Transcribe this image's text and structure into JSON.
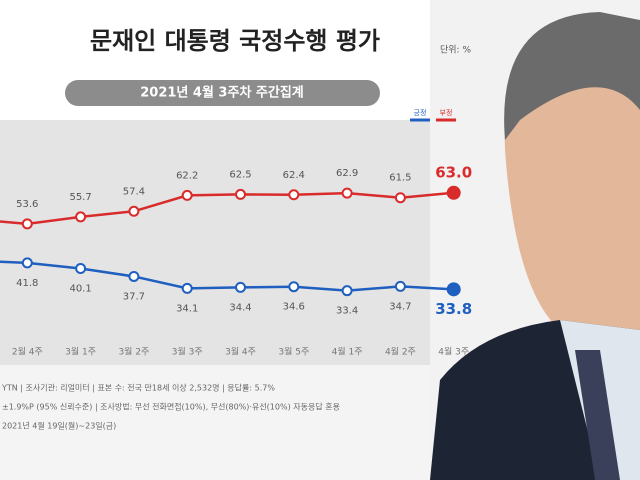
{
  "chart_data": {
    "type": "line",
    "title": "문재인 대통령 국정수행 평가",
    "unit_note": "단위: %",
    "subtitle": "2021년 4월 3주차 주간집계",
    "categories": [
      null,
      "2월 4주",
      "3월 1주",
      "3월 2주",
      "3월 3주",
      "3월 4주",
      "3월 5주",
      "4월 1주",
      "4월 2주",
      "4월 3주"
    ],
    "series": [
      {
        "name": "긍정",
        "color": "#1f5fbf",
        "values": [
          42.5,
          41.8,
          40.1,
          37.7,
          34.1,
          34.4,
          34.6,
          33.4,
          34.7,
          33.8
        ],
        "value_labels": [
          null,
          "41.8",
          "40.1",
          "37.7",
          "34.1",
          "34.4",
          "34.6",
          "33.4",
          "34.7",
          "33.8"
        ]
      },
      {
        "name": "부정",
        "color": "#d92b2b",
        "values": [
          55.0,
          53.6,
          55.7,
          57.4,
          62.2,
          62.5,
          62.4,
          62.9,
          61.5,
          63.0
        ],
        "value_labels": [
          null,
          "53.6",
          "55.7",
          "57.4",
          "62.2",
          "62.5",
          "62.4",
          "62.9",
          "61.5",
          "63.0"
        ]
      }
    ],
    "ylim": [
      20,
      85
    ],
    "footer": [
      "YTN | 조사기관: 리얼미터 | 표본 수: 전국 만18세 이상 2,532명 | 응답률: 5.7%",
      "±1.9%P (95% 신뢰수준) | 조사방법: 무선 전화면접(10%), 무선(80%)·유선(10%) 자동응답 혼용",
      "2021년 4월 19일(월)~23일(금)"
    ]
  }
}
